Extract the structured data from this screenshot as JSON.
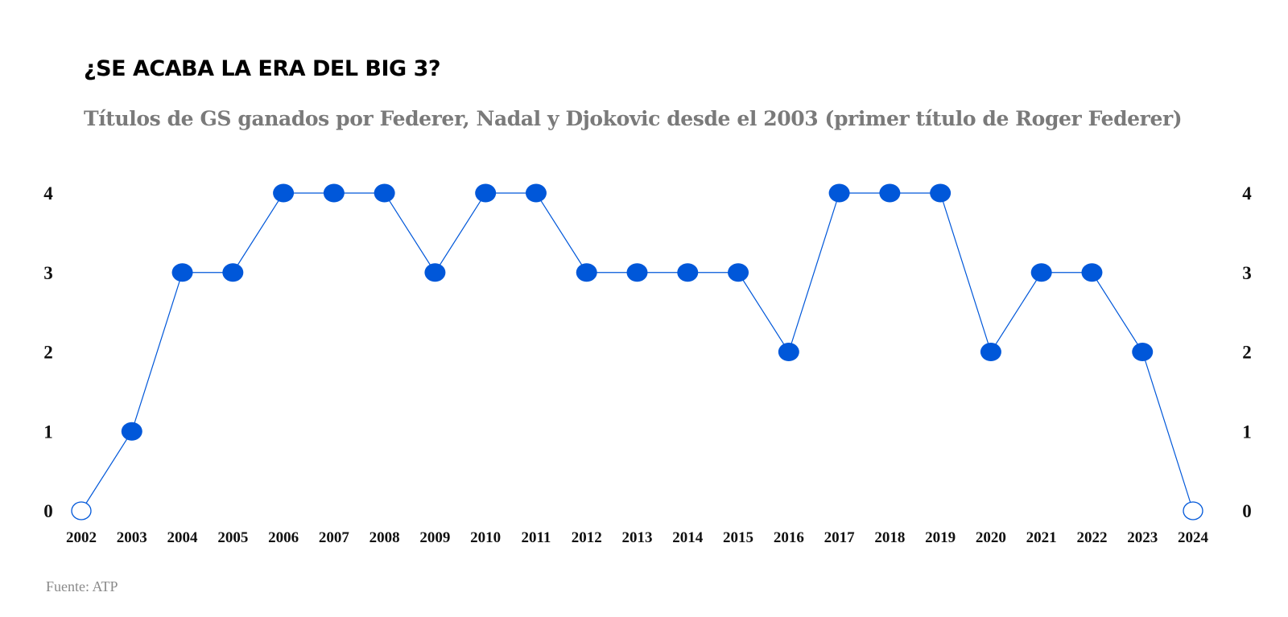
{
  "title": "¿SE ACABA LA ERA DEL BIG 3?",
  "subtitle": "Títulos de GS ganados por Federer, Nadal y Djokovic desde el 2003 (primer título de Roger Federer)",
  "source": "Fuente: ATP",
  "colors": {
    "line": "#0057d9",
    "marker": "#0057d9",
    "zero_marker_fill": "#ffffff"
  },
  "chart_data": {
    "type": "line",
    "title": "¿SE ACABA LA ERA DEL BIG 3?",
    "subtitle": "Títulos de GS ganados por Federer, Nadal y Djokovic desde el 2003 (primer título de Roger Federer)",
    "xlabel": "",
    "ylabel": "",
    "grid": false,
    "ylim": [
      0,
      4
    ],
    "yticks": [
      0,
      1,
      2,
      3,
      4
    ],
    "y_axis_sides": [
      "left",
      "right"
    ],
    "categories": [
      "2002",
      "2003",
      "2004",
      "2005",
      "2006",
      "2007",
      "2008",
      "2009",
      "2010",
      "2011",
      "2012",
      "2013",
      "2014",
      "2015",
      "2016",
      "2017",
      "2018",
      "2019",
      "2020",
      "2021",
      "2022",
      "2023",
      "2024"
    ],
    "series": [
      {
        "values": [
          0,
          1,
          3,
          3,
          4,
          4,
          4,
          3,
          4,
          4,
          3,
          3,
          3,
          3,
          2,
          4,
          4,
          4,
          2,
          3,
          3,
          2,
          0
        ]
      }
    ]
  }
}
